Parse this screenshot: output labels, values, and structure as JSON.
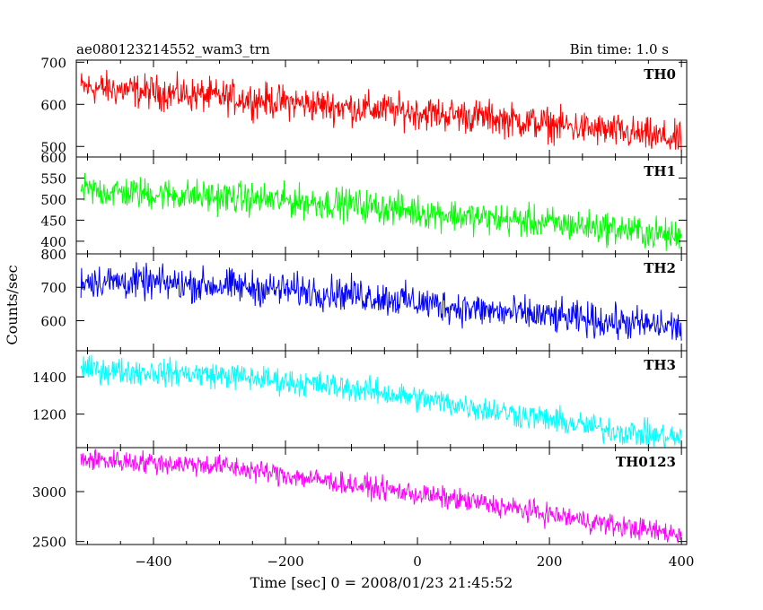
{
  "header": {
    "title": "ae080123214552_wam3_trn",
    "bin_time": "Bin time: 1.0 s"
  },
  "chart_data": {
    "type": "line",
    "xlabel": "Time [sec] 0 = 2008/01/23 21:45:52",
    "ylabel": "Counts/sec",
    "xlim": [
      -517,
      408
    ],
    "x_ticks": [
      -400,
      -200,
      0,
      200,
      400
    ],
    "x_tick_labels": [
      "−400",
      "−200",
      "0",
      "200",
      "400"
    ],
    "x_step": 1,
    "panels": [
      {
        "name": "TH0",
        "color": "#ff0000",
        "ylim": [
          475,
          705
        ],
        "y_ticks": [
          500,
          600,
          700
        ],
        "y_tick_labels": [
          "500",
          "600",
          "700"
        ],
        "trend_x": [
          -500,
          -300,
          -100,
          100,
          300,
          400
        ],
        "trend_y": [
          640,
          618,
          592,
          570,
          535,
          515
        ],
        "noise_amplitude": 40
      },
      {
        "name": "TH1",
        "color": "#00ff00",
        "ylim": [
          370,
          600
        ],
        "y_ticks": [
          400,
          450,
          500,
          550,
          600
        ],
        "y_tick_labels": [
          "400",
          "450",
          "500",
          "550",
          "600"
        ],
        "trend_x": [
          -500,
          -300,
          -100,
          100,
          300,
          400
        ],
        "trend_y": [
          520,
          505,
          487,
          455,
          430,
          410
        ],
        "noise_amplitude": 38
      },
      {
        "name": "TH2",
        "color": "#0000ff",
        "ylim": [
          510,
          800
        ],
        "y_ticks": [
          600,
          700,
          800
        ],
        "y_tick_labels": [
          "600",
          "700",
          "800"
        ],
        "trend_x": [
          -500,
          -300,
          -100,
          100,
          300,
          400
        ],
        "trend_y": [
          720,
          705,
          680,
          630,
          595,
          580
        ],
        "noise_amplitude": 50
      },
      {
        "name": "TH3",
        "color": "#00ffff",
        "ylim": [
          1020,
          1540
        ],
        "y_ticks": [
          1200,
          1400
        ],
        "y_tick_labels": [
          "1200",
          "1400"
        ],
        "trend_x": [
          -500,
          -300,
          -100,
          100,
          300,
          400
        ],
        "trend_y": [
          1440,
          1410,
          1340,
          1230,
          1110,
          1070
        ],
        "noise_amplitude": 70
      },
      {
        "name": "TH0123",
        "color": "#ff00ff",
        "ylim": [
          2470,
          3440
        ],
        "y_ticks": [
          2500,
          3000
        ],
        "y_tick_labels": [
          "2500",
          "3000"
        ],
        "trend_x": [
          -500,
          -300,
          -100,
          100,
          300,
          400
        ],
        "trend_y": [
          3320,
          3260,
          3070,
          2880,
          2660,
          2570
        ],
        "noise_amplitude": 110
      }
    ]
  }
}
